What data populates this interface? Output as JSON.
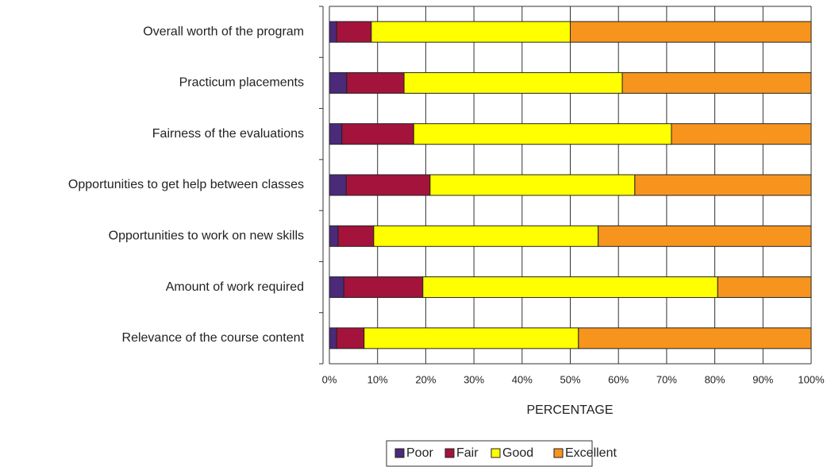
{
  "chart_data": {
    "type": "stacked_barh",
    "categories": [
      "Overall worth of the program",
      "Practicum placements",
      "Fairness of the evaluations",
      "Opportunities to get help between classes",
      "Opportunities to work on new skills",
      "Amount of work required",
      "Relevance of the course content"
    ],
    "series": [
      {
        "name": "Poor",
        "color": "#4b2a7a",
        "values": [
          1.5,
          3.6,
          2.6,
          3.5,
          1.8,
          3.0,
          1.5
        ]
      },
      {
        "name": "Fair",
        "color": "#a3133b",
        "values": [
          7.2,
          11.9,
          14.9,
          17.4,
          7.4,
          16.4,
          5.7
        ]
      },
      {
        "name": "Good",
        "color": "#ffff00",
        "values": [
          41.3,
          45.3,
          53.5,
          42.5,
          46.6,
          61.2,
          44.5
        ]
      },
      {
        "name": "Excellent",
        "color": "#f7941d",
        "values": [
          50.0,
          39.2,
          29.0,
          36.6,
          44.2,
          19.4,
          48.3
        ]
      }
    ],
    "xlim": [
      0,
      100
    ],
    "xticks": [
      {
        "value": 0,
        "label": "0%"
      },
      {
        "value": 10,
        "label": "10%"
      },
      {
        "value": 20,
        "label": "20%"
      },
      {
        "value": 30,
        "label": "30%"
      },
      {
        "value": 40,
        "label": "40%"
      },
      {
        "value": 50,
        "label": "50%"
      },
      {
        "value": 60,
        "label": "60%"
      },
      {
        "value": 70,
        "label": "70%"
      },
      {
        "value": 80,
        "label": "80%"
      },
      {
        "value": 90,
        "label": "90%"
      },
      {
        "value": 100,
        "label": "100%"
      }
    ],
    "xlabel": "PERCENTAGE",
    "grid": true,
    "legend": "bottom"
  }
}
